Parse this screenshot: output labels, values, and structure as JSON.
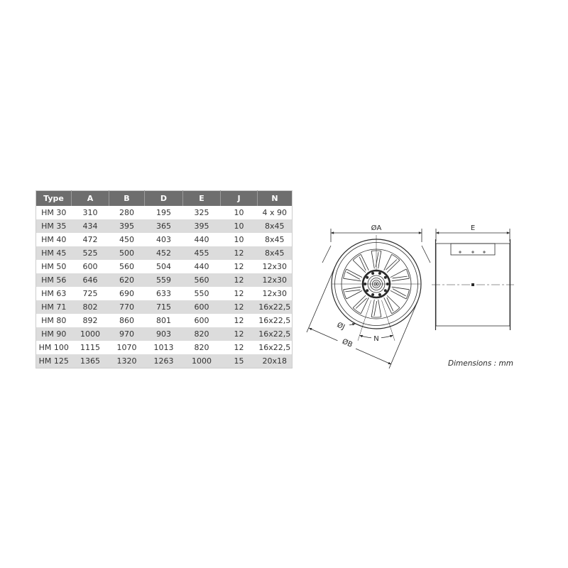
{
  "table": {
    "headers": [
      "Type",
      "A",
      "B",
      "D",
      "E",
      "J",
      "N"
    ],
    "rows": [
      [
        "HM 30",
        "310",
        "280",
        "195",
        "325",
        "10",
        "4 x 90"
      ],
      [
        "HM 35",
        "434",
        "395",
        "365",
        "395",
        "10",
        "8x45"
      ],
      [
        "HM 40",
        "472",
        "450",
        "403",
        "440",
        "10",
        "8x45"
      ],
      [
        "HM 45",
        "525",
        "500",
        "452",
        "455",
        "12",
        "8x45"
      ],
      [
        "HM 50",
        "600",
        "560",
        "504",
        "440",
        "12",
        "12x30"
      ],
      [
        "HM 56",
        "646",
        "620",
        "559",
        "560",
        "12",
        "12x30"
      ],
      [
        "HM 63",
        "725",
        "690",
        "633",
        "550",
        "12",
        "12x30"
      ],
      [
        "HM 71",
        "802",
        "770",
        "715",
        "600",
        "12",
        "16x22,5"
      ],
      [
        "HM 80",
        "892",
        "860",
        "801",
        "600",
        "12",
        "16x22,5"
      ],
      [
        "HM 90",
        "1000",
        "970",
        "903",
        "820",
        "12",
        "16x22,5"
      ],
      [
        "HM 100",
        "1115",
        "1070",
        "1013",
        "820",
        "12",
        "16x22,5"
      ],
      [
        "HM 125",
        "1365",
        "1320",
        "1263",
        "1000",
        "15",
        "20x18"
      ]
    ]
  },
  "diagram": {
    "labels": {
      "dia_a": "ØA",
      "e": "E",
      "dia_b": "ØB",
      "dia_j": "ØJ",
      "n": "N"
    },
    "note": "Dimensions : mm"
  },
  "colors": {
    "header_bg": "#6e6e6e",
    "header_text": "#ffffff",
    "row_alt_bg": "#dcdcdc",
    "text": "#333333",
    "line_color": "#2a2a2a"
  }
}
